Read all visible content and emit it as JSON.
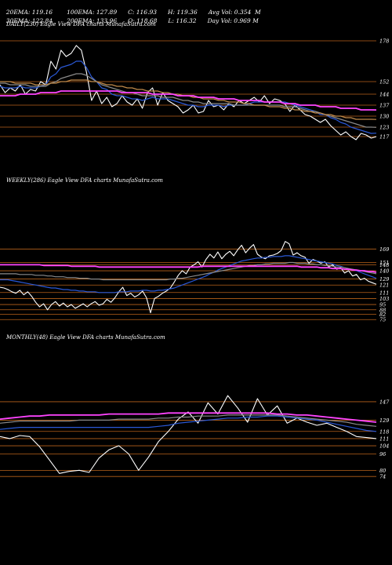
{
  "header": {
    "row1": [
      "20EMA: 119.16",
      "100EMA: 127.89",
      "C: 116.93",
      "H: 119.36",
      "Avg Vol: 0.354  M"
    ],
    "row2": [
      "30EMA: 122.84",
      "200EMA: 133.96",
      "O: 118.68",
      "L: 116.32",
      "Day Vol: 0.969 M"
    ]
  },
  "chart_data": [
    {
      "type": "line",
      "title": "DAILY(230) Eagle  View  DFA charts MunafaSutra.com",
      "y_ticks": [
        178,
        152,
        144,
        137,
        130,
        123,
        117
      ],
      "series": [
        {
          "role": "price",
          "color": "#ffffff",
          "values": [
            150,
            145,
            148,
            146,
            150,
            144,
            147,
            146,
            152,
            150,
            165,
            160,
            172,
            168,
            170,
            175,
            172,
            158,
            140,
            146,
            138,
            142,
            136,
            138,
            143,
            139,
            137,
            141,
            135,
            145,
            148,
            137,
            145,
            140,
            138,
            136,
            132,
            134,
            137,
            132,
            133,
            140,
            136,
            137,
            134,
            138,
            136,
            140,
            138,
            140,
            142,
            139,
            143,
            138,
            141,
            140,
            138,
            133,
            137,
            134,
            131,
            130,
            128,
            126,
            128,
            124,
            121,
            118,
            120,
            117,
            115,
            119,
            118,
            116,
            116.93
          ]
        },
        {
          "role": "ema-short",
          "color": "#2a58d6",
          "values": [
            149,
            148,
            148,
            148,
            149,
            148,
            148,
            148,
            149,
            150,
            155,
            157,
            161,
            162,
            163,
            165,
            165,
            161,
            155,
            152,
            148,
            147,
            144,
            143,
            143,
            142,
            141,
            141,
            140,
            141,
            142,
            141,
            141,
            141,
            140,
            139,
            138,
            137,
            137,
            136,
            136,
            137,
            137,
            137,
            136,
            137,
            137,
            137,
            137,
            138,
            139,
            139,
            139,
            139,
            139,
            139,
            139,
            138,
            137,
            136,
            135,
            134,
            133,
            131,
            131,
            129,
            128,
            126,
            125,
            123,
            122,
            121,
            120,
            119,
            119.16
          ]
        },
        {
          "role": "ema-mid",
          "color": "#8a8a8a",
          "values": [
            151,
            151,
            150,
            150,
            150,
            150,
            149,
            149,
            149,
            149,
            151,
            152,
            154,
            155,
            156,
            157,
            157,
            156,
            154,
            152,
            150,
            149,
            148,
            147,
            146,
            145,
            145,
            144,
            143,
            143,
            143,
            143,
            142,
            142,
            142,
            141,
            140,
            140,
            139,
            139,
            138,
            138,
            138,
            138,
            138,
            138,
            137,
            137,
            137,
            137,
            137,
            137,
            137,
            137,
            137,
            137,
            136,
            136,
            136,
            135,
            134,
            133,
            133,
            132,
            131,
            130,
            129,
            128,
            127,
            126,
            125,
            124,
            123,
            123,
            122.84
          ]
        },
        {
          "role": "ema-long",
          "color": "#c08a4a",
          "values": [
            152,
            152,
            152,
            151,
            151,
            151,
            151,
            150,
            150,
            150,
            151,
            151,
            152,
            152,
            153,
            153,
            153,
            153,
            152,
            152,
            151,
            150,
            150,
            149,
            149,
            148,
            148,
            147,
            147,
            146,
            146,
            146,
            145,
            145,
            144,
            144,
            143,
            143,
            142,
            142,
            141,
            141,
            141,
            140,
            140,
            139,
            139,
            139,
            138,
            138,
            137,
            137,
            137,
            136,
            136,
            136,
            135,
            135,
            134,
            134,
            133,
            133,
            132,
            132,
            131,
            131,
            130,
            130,
            129,
            129,
            128,
            128,
            128,
            128,
            127.89
          ]
        },
        {
          "role": "ema-200",
          "color": "#ff44ff",
          "values": [
            143,
            143,
            143,
            143,
            144,
            144,
            144,
            144,
            145,
            145,
            145,
            145,
            146,
            146,
            146,
            146,
            146,
            146,
            146,
            146,
            146,
            146,
            146,
            146,
            145,
            145,
            145,
            145,
            145,
            145,
            144,
            144,
            144,
            144,
            144,
            143,
            143,
            143,
            143,
            142,
            142,
            142,
            142,
            141,
            141,
            141,
            141,
            140,
            140,
            140,
            140,
            140,
            139,
            139,
            139,
            139,
            138,
            138,
            138,
            137,
            137,
            137,
            137,
            136,
            136,
            136,
            136,
            135,
            135,
            135,
            135,
            134,
            134,
            134,
            133.96
          ]
        }
      ]
    },
    {
      "type": "line",
      "title": "WEEKLY(286) Eagle  View  DFA charts MunafaSutra.com",
      "y_ticks": [
        169,
        151,
        148,
        140,
        129,
        121,
        111,
        103,
        95,
        88,
        82,
        75
      ],
      "series": [
        {
          "role": "price",
          "color": "#ffffff",
          "values": [
            118,
            117,
            115,
            112,
            110,
            114,
            108,
            112,
            106,
            98,
            92,
            96,
            88,
            95,
            99,
            93,
            97,
            92,
            95,
            90,
            93,
            96,
            92,
            96,
            99,
            94,
            96,
            102,
            98,
            104,
            112,
            118,
            107,
            110,
            105,
            108,
            113,
            104,
            84,
            103,
            106,
            110,
            113,
            117,
            125,
            134,
            140,
            136,
            145,
            148,
            152,
            145,
            155,
            162,
            157,
            165,
            156,
            162,
            166,
            160,
            168,
            174,
            164,
            170,
            175,
            162,
            158,
            156,
            160,
            161,
            163,
            167,
            179,
            176,
            161,
            164,
            160,
            158,
            150,
            155,
            153,
            150,
            152,
            145,
            148,
            142,
            144,
            137,
            140,
            133,
            135,
            128,
            130,
            126,
            124,
            122
          ]
        },
        {
          "role": "avg-short",
          "color": "#2a58d6",
          "values": [
            128,
            128,
            128,
            127,
            126,
            125,
            124,
            123,
            122,
            121,
            120,
            119,
            118,
            117,
            117,
            116,
            115,
            115,
            114,
            114,
            113,
            113,
            112,
            112,
            112,
            111,
            111,
            111,
            111,
            111,
            112,
            112,
            112,
            113,
            113,
            113,
            114,
            114,
            113,
            113,
            114,
            114,
            115,
            116,
            117,
            119,
            121,
            123,
            125,
            127,
            129,
            131,
            133,
            136,
            138,
            141,
            143,
            145,
            147,
            149,
            151,
            153,
            154,
            155,
            156,
            157,
            157,
            158,
            158,
            159,
            159,
            159,
            160,
            160,
            159,
            158,
            157,
            156,
            155,
            154,
            153,
            152,
            151,
            150,
            149,
            147,
            146,
            144,
            143,
            141,
            140,
            138,
            136,
            134,
            132,
            130
          ]
        },
        {
          "role": "avg-mid",
          "color": "#8a8a8a",
          "values": [
            136,
            136,
            136,
            136,
            136,
            135,
            135,
            135,
            135,
            134,
            134,
            134,
            133,
            133,
            132,
            132,
            132,
            131,
            131,
            131,
            130,
            130,
            130,
            129,
            129,
            129,
            128,
            128,
            128,
            128,
            128,
            128,
            128,
            128,
            128,
            128,
            128,
            128,
            128,
            128,
            128,
            128,
            128,
            129,
            129,
            130,
            130,
            131,
            132,
            133,
            134,
            135,
            136,
            137,
            138,
            139,
            140,
            141,
            142,
            143,
            144,
            145,
            146,
            147,
            147,
            148,
            148,
            149,
            149,
            150,
            150,
            150,
            150,
            151,
            151,
            150,
            150,
            150,
            149,
            149,
            148,
            148,
            147,
            147,
            146,
            145,
            145,
            144,
            143,
            142,
            141,
            140,
            139,
            138,
            137,
            136
          ]
        },
        {
          "role": "avg-long",
          "color": "#ff44ff",
          "values": [
            148,
            148,
            148,
            148,
            148,
            148,
            148,
            148,
            148,
            148,
            148,
            147,
            147,
            147,
            147,
            147,
            147,
            147,
            146,
            146,
            146,
            146,
            146,
            146,
            146,
            145,
            145,
            145,
            145,
            145,
            145,
            145,
            145,
            145,
            145,
            145,
            145,
            145,
            145,
            145,
            145,
            145,
            145,
            145,
            145,
            145,
            145,
            145,
            145,
            145,
            145,
            146,
            146,
            146,
            146,
            146,
            146,
            146,
            146,
            146,
            146,
            146,
            146,
            146,
            146,
            146,
            146,
            146,
            146,
            146,
            146,
            146,
            146,
            146,
            146,
            146,
            145,
            145,
            145,
            145,
            145,
            144,
            144,
            144,
            143,
            143,
            143,
            142,
            142,
            141,
            141,
            140,
            140,
            139,
            139,
            138
          ]
        }
      ]
    },
    {
      "type": "line",
      "title": "MONTHLY(48) Eagle  View  DFA charts MunafaSutra.com",
      "y_ticks": [
        147,
        129,
        118,
        111,
        104,
        96,
        80,
        74
      ],
      "series": [
        {
          "role": "price",
          "color": "#ffffff",
          "values": [
            113,
            111,
            114,
            113,
            103,
            90,
            77,
            79,
            80,
            78,
            92,
            100,
            104,
            96,
            80,
            93,
            108,
            118,
            130,
            137,
            126,
            146,
            135,
            153,
            141,
            127,
            150,
            134,
            143,
            126,
            131,
            127,
            124,
            126,
            122,
            118,
            113,
            112,
            111
          ]
        },
        {
          "role": "avg-short",
          "color": "#2a58d6",
          "values": [
            120,
            121,
            122,
            122,
            122,
            122,
            122,
            122,
            122,
            122,
            122,
            122,
            122,
            122,
            122,
            122,
            123,
            124,
            126,
            127,
            128,
            129,
            130,
            131,
            131,
            132,
            132,
            133,
            133,
            132,
            131,
            130,
            129,
            127,
            125,
            123,
            121,
            119,
            118
          ]
        },
        {
          "role": "avg-mid",
          "color": "#8a8a8a",
          "values": [
            126,
            127,
            128,
            128,
            128,
            128,
            128,
            128,
            129,
            129,
            129,
            129,
            130,
            130,
            130,
            130,
            131,
            131,
            132,
            132,
            133,
            133,
            133,
            134,
            134,
            134,
            134,
            134,
            134,
            133,
            132,
            131,
            130,
            129,
            128,
            127,
            125,
            124,
            123
          ]
        },
        {
          "role": "avg-long",
          "color": "#ff44ff",
          "values": [
            130,
            131,
            132,
            133,
            133,
            134,
            134,
            134,
            134,
            134,
            134,
            135,
            135,
            135,
            135,
            135,
            135,
            136,
            136,
            136,
            136,
            136,
            136,
            136,
            136,
            136,
            136,
            136,
            135,
            135,
            134,
            134,
            133,
            132,
            131,
            130,
            129,
            128,
            127
          ]
        }
      ]
    }
  ]
}
